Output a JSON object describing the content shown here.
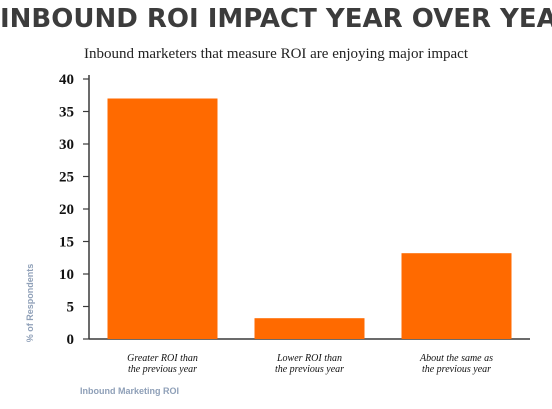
{
  "chart_data": {
    "type": "bar",
    "title": "INBOUND ROI IMPACT YEAR OVER YEAR",
    "subtitle": "Inbound marketers that measure ROI are enjoying major impact",
    "categories": [
      [
        "Greater ROI than",
        "the previous year"
      ],
      [
        "Lower ROI than",
        "the previous year"
      ],
      [
        "About the same as",
        "the previous year"
      ]
    ],
    "values": [
      37,
      3.2,
      13.2
    ],
    "ylabel": "% of Respondents",
    "xlabel": "Inbound Marketing ROI",
    "ylim": [
      0,
      40
    ],
    "yticks": [
      0,
      5,
      10,
      15,
      20,
      25,
      30,
      35,
      40
    ],
    "grid": false,
    "colors": {
      "bar": "#ff6a00",
      "axis": "#3a3a3a"
    }
  }
}
